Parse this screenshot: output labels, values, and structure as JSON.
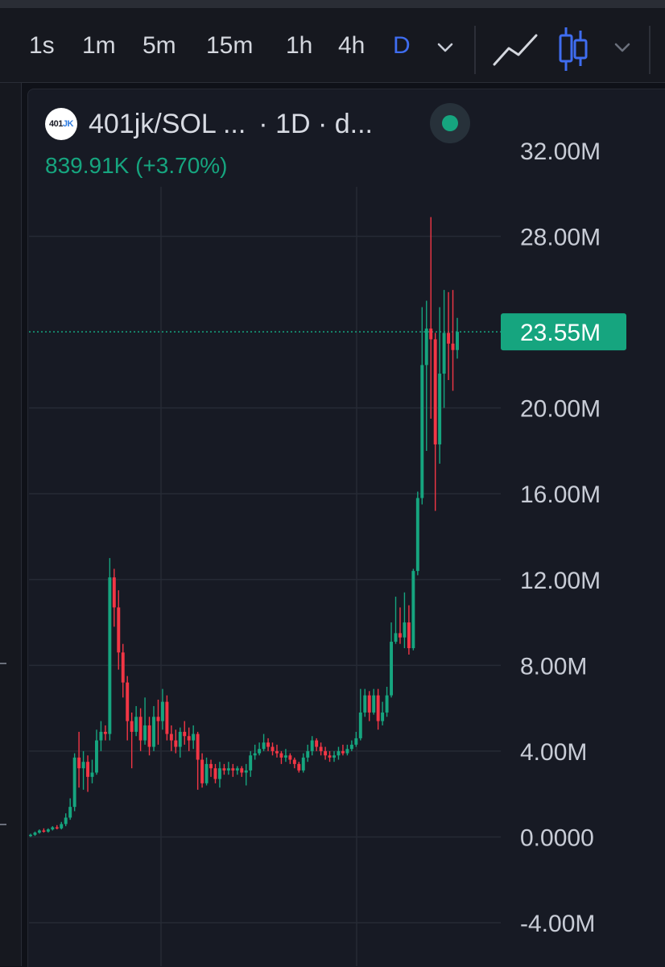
{
  "toolbar": {
    "timeframes": [
      "1s",
      "1m",
      "5m",
      "15m",
      "1h",
      "4h",
      "D"
    ],
    "active_timeframe": "D",
    "accent_color": "#3f6df0",
    "icons": [
      "chevron-down-icon",
      "line-chart-icon",
      "candlestick-icon",
      "chevron-down-icon"
    ]
  },
  "legend": {
    "logo_text": "401",
    "logo_accent": "JK",
    "symbol": "401jk/SOL ...",
    "interval": "· 1D · d...",
    "change": "839.91K (+3.70%)",
    "status": "market-open",
    "status_color": "#16a57f"
  },
  "chart_data": {
    "type": "candlestick",
    "y_ticks": [
      "32.00M",
      "28.00M",
      "20.00M",
      "16.00M",
      "12.00M",
      "8.00M",
      "4.00M",
      "0.0000",
      "-4.00M"
    ],
    "ylim": [
      -4,
      32
    ],
    "y_unit": "M",
    "last_price_label": "23.55M",
    "last_price": 23.55,
    "up_color": "#16a57f",
    "down_color": "#f23645",
    "grid": true,
    "candles": [
      [
        0.05,
        0.1,
        0.0,
        0.15
      ],
      [
        0.1,
        0.2,
        0.05,
        0.25
      ],
      [
        0.2,
        0.3,
        0.15,
        0.35
      ],
      [
        0.3,
        0.25,
        0.2,
        0.4
      ],
      [
        0.25,
        0.35,
        0.2,
        0.4
      ],
      [
        0.35,
        0.45,
        0.3,
        0.5
      ],
      [
        0.45,
        0.4,
        0.35,
        0.55
      ],
      [
        0.4,
        0.6,
        0.35,
        0.7
      ],
      [
        0.6,
        0.9,
        0.5,
        1.1
      ],
      [
        0.9,
        1.4,
        0.8,
        1.8
      ],
      [
        1.4,
        3.7,
        1.2,
        3.9
      ],
      [
        3.7,
        3.2,
        2.3,
        4.9
      ],
      [
        3.2,
        3.5,
        2.2,
        4.0
      ],
      [
        3.5,
        2.8,
        2.1,
        3.8
      ],
      [
        2.8,
        3.0,
        2.5,
        3.6
      ],
      [
        3.0,
        4.5,
        2.9,
        5.0
      ],
      [
        4.5,
        4.9,
        4.0,
        5.4
      ],
      [
        4.9,
        4.8,
        4.5,
        5.2
      ],
      [
        4.8,
        12.1,
        4.5,
        13.0
      ],
      [
        12.1,
        10.7,
        9.8,
        12.5
      ],
      [
        10.7,
        8.6,
        7.8,
        11.5
      ],
      [
        8.6,
        7.2,
        6.5,
        9.0
      ],
      [
        7.2,
        5.4,
        4.5,
        7.5
      ],
      [
        5.4,
        4.9,
        3.2,
        5.8
      ],
      [
        4.9,
        5.6,
        4.7,
        6.1
      ],
      [
        5.6,
        4.5,
        4.0,
        6.0
      ],
      [
        4.5,
        5.2,
        4.3,
        6.5
      ],
      [
        5.2,
        4.2,
        3.8,
        5.6
      ],
      [
        4.2,
        5.6,
        4.0,
        6.1
      ],
      [
        5.6,
        5.4,
        4.3,
        6.4
      ],
      [
        5.4,
        6.3,
        5.0,
        6.9
      ],
      [
        6.3,
        4.8,
        4.5,
        6.6
      ],
      [
        4.8,
        4.5,
        4.0,
        5.2
      ],
      [
        4.5,
        4.2,
        3.9,
        5.0
      ],
      [
        4.2,
        4.9,
        3.7,
        5.1
      ],
      [
        4.9,
        4.7,
        4.3,
        5.4
      ],
      [
        4.7,
        4.5,
        4.0,
        5.1
      ],
      [
        4.5,
        4.8,
        4.1,
        5.2
      ],
      [
        4.8,
        3.6,
        2.2,
        4.9
      ],
      [
        3.6,
        2.5,
        2.3,
        3.9
      ],
      [
        2.5,
        3.4,
        2.4,
        3.7
      ],
      [
        3.4,
        3.2,
        2.8,
        3.6
      ],
      [
        3.2,
        2.7,
        2.5,
        3.4
      ],
      [
        2.7,
        3.2,
        2.3,
        3.5
      ],
      [
        3.2,
        3.1,
        2.9,
        3.4
      ],
      [
        3.1,
        3.2,
        2.9,
        3.5
      ],
      [
        3.2,
        3.1,
        2.8,
        3.4
      ],
      [
        3.1,
        3.2,
        2.9,
        3.3
      ],
      [
        3.2,
        3.0,
        2.8,
        3.3
      ],
      [
        3.0,
        3.1,
        2.4,
        3.4
      ],
      [
        3.1,
        3.8,
        2.8,
        4.0
      ],
      [
        3.8,
        3.9,
        3.6,
        4.3
      ],
      [
        3.9,
        4.1,
        3.8,
        4.4
      ],
      [
        4.1,
        4.4,
        4.0,
        4.8
      ],
      [
        4.4,
        4.2,
        4.0,
        4.6
      ],
      [
        4.2,
        4.0,
        3.8,
        4.4
      ],
      [
        4.0,
        3.9,
        3.7,
        4.3
      ],
      [
        3.9,
        3.7,
        3.4,
        4.0
      ],
      [
        3.7,
        3.8,
        3.5,
        4.1
      ],
      [
        3.8,
        3.6,
        3.4,
        3.9
      ],
      [
        3.6,
        3.4,
        3.2,
        3.7
      ],
      [
        3.4,
        3.1,
        3.0,
        3.5
      ],
      [
        3.1,
        3.7,
        3.0,
        3.9
      ],
      [
        3.7,
        4.0,
        3.5,
        4.3
      ],
      [
        4.0,
        4.5,
        3.8,
        4.7
      ],
      [
        4.5,
        4.2,
        4.0,
        4.6
      ],
      [
        4.2,
        4.0,
        3.8,
        4.4
      ],
      [
        4.0,
        3.8,
        3.6,
        4.2
      ],
      [
        3.8,
        3.7,
        3.5,
        4.0
      ],
      [
        3.7,
        3.8,
        3.5,
        4.0
      ],
      [
        3.8,
        4.0,
        3.6,
        4.2
      ],
      [
        4.0,
        3.9,
        3.8,
        4.3
      ],
      [
        3.9,
        4.1,
        3.8,
        4.3
      ],
      [
        4.1,
        4.3,
        4.0,
        4.5
      ],
      [
        4.3,
        4.6,
        4.2,
        4.9
      ],
      [
        4.6,
        5.8,
        4.5,
        6.9
      ],
      [
        5.8,
        6.6,
        5.6,
        6.9
      ],
      [
        6.6,
        5.8,
        5.4,
        6.8
      ],
      [
        5.8,
        6.6,
        5.7,
        6.9
      ],
      [
        6.6,
        5.4,
        5.0,
        6.9
      ],
      [
        5.4,
        5.8,
        5.2,
        6.3
      ],
      [
        5.8,
        6.6,
        5.6,
        7.0
      ],
      [
        6.6,
        9.1,
        6.5,
        10.0
      ],
      [
        9.1,
        9.5,
        9.0,
        11.2
      ],
      [
        9.5,
        9.3,
        9.0,
        10.7
      ],
      [
        9.3,
        10.0,
        8.8,
        11.4
      ],
      [
        10.0,
        8.8,
        8.5,
        10.8
      ],
      [
        8.8,
        12.4,
        8.7,
        12.5
      ],
      [
        12.4,
        15.8,
        12.2,
        16.1
      ],
      [
        15.8,
        22.0,
        15.5,
        24.7
      ],
      [
        22.0,
        23.7,
        18.0,
        25.0
      ],
      [
        23.7,
        23.2,
        19.5,
        28.9
      ],
      [
        23.2,
        18.3,
        15.2,
        23.5
      ],
      [
        18.3,
        21.6,
        17.4,
        24.7
      ],
      [
        21.6,
        23.5,
        20.0,
        25.5
      ],
      [
        23.5,
        23.0,
        21.3,
        25.4
      ],
      [
        23.0,
        22.7,
        20.8,
        25.5
      ],
      [
        22.7,
        23.55,
        22.3,
        24.2
      ]
    ]
  }
}
